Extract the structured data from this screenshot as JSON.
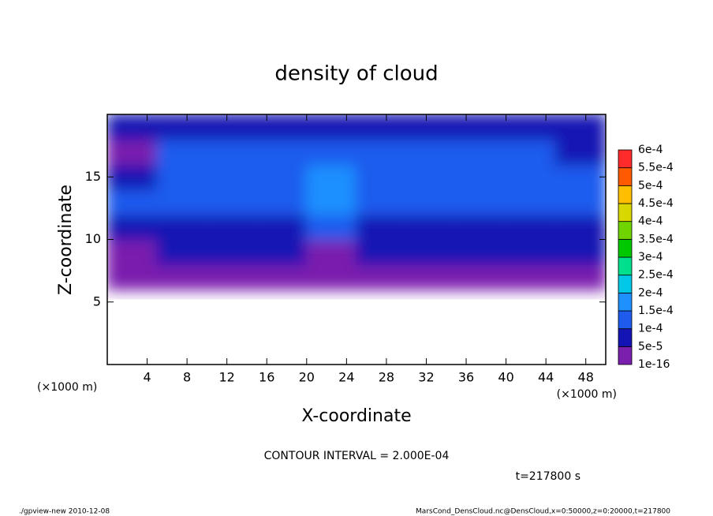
{
  "chart_data": {
    "type": "heatmap",
    "title": "density of cloud",
    "x_label": "X-coordinate",
    "y_label": "Z-coordinate",
    "x_unit": "(×1000 m)",
    "y_unit": "(×1000 m)",
    "contour_note": "CONTOUR INTERVAL = 2.000E-04",
    "time_label": "t=217800 s",
    "footer_left": "./gpview-new  2010-12-08",
    "footer_right": "MarsCond_DensCloud.nc@DensCloud,x=0:50000,z=0:20000,t=217800",
    "xlim": [
      0,
      50
    ],
    "ylim": [
      0,
      20
    ],
    "xticks": [
      4,
      8,
      12,
      16,
      20,
      24,
      28,
      32,
      36,
      40,
      44,
      48
    ],
    "yticks": [
      5,
      10,
      15
    ],
    "x": [
      2.5,
      7.5,
      12.5,
      17.5,
      22.5,
      27.5,
      32.5,
      37.5,
      42.5,
      47.5
    ],
    "z": [
      1,
      3,
      5,
      7,
      9,
      11,
      13,
      15,
      17,
      19
    ],
    "values": [
      [
        null,
        null,
        null,
        null,
        null,
        null,
        null,
        null,
        null,
        null
      ],
      [
        null,
        null,
        null,
        null,
        null,
        null,
        null,
        null,
        null,
        null
      ],
      [
        null,
        null,
        null,
        null,
        null,
        null,
        null,
        null,
        null,
        null
      ],
      [
        2e-05,
        2e-05,
        2e-05,
        2e-05,
        2e-05,
        2e-05,
        2e-05,
        2e-05,
        2e-05,
        2e-05
      ],
      [
        4e-05,
        6e-05,
        6e-05,
        5e-05,
        3e-05,
        6e-05,
        6e-05,
        6e-05,
        6e-05,
        5e-05
      ],
      [
        9e-05,
        8e-05,
        9e-05,
        8e-05,
        0.00011,
        9e-05,
        8e-05,
        8e-05,
        9e-05,
        9e-05
      ],
      [
        0.00012,
        0.00011,
        0.00012,
        0.00012,
        0.00016,
        0.00012,
        0.00012,
        0.00011,
        0.00012,
        0.00011
      ],
      [
        8e-05,
        0.00012,
        0.00013,
        0.00012,
        0.00016,
        0.00014,
        0.00013,
        0.00013,
        0.00012,
        0.0001
      ],
      [
        3e-05,
        0.00011,
        0.00012,
        0.00013,
        0.00014,
        0.00013,
        0.00013,
        0.00012,
        0.00012,
        6e-05
      ],
      [
        6e-05,
        8e-05,
        9e-05,
        9e-05,
        9e-05,
        9e-05,
        9e-05,
        8e-05,
        8e-05,
        5e-05
      ]
    ],
    "levels": [
      {
        "value": 1e-16,
        "label": "1e-16"
      },
      {
        "value": 5e-05,
        "label": "5e-5"
      },
      {
        "value": 0.0001,
        "label": "1e-4"
      },
      {
        "value": 0.00015,
        "label": "1.5e-4"
      },
      {
        "value": 0.0002,
        "label": "2e-4"
      },
      {
        "value": 0.00025,
        "label": "2.5e-4"
      },
      {
        "value": 0.0003,
        "label": "3e-4"
      },
      {
        "value": 0.00035,
        "label": "3.5e-4"
      },
      {
        "value": 0.0004,
        "label": "4e-4"
      },
      {
        "value": 0.00045,
        "label": "4.5e-4"
      },
      {
        "value": 0.0005,
        "label": "5e-4"
      },
      {
        "value": 0.00055,
        "label": "5.5e-4"
      },
      {
        "value": 0.0006,
        "label": "6e-4"
      }
    ],
    "colors": [
      "#7a1fae",
      "#1414b4",
      "#1f5cee",
      "#1e90ff",
      "#00c8e6",
      "#00e08c",
      "#00c800",
      "#70d400",
      "#d8d800",
      "#ffbe00",
      "#ff5a00",
      "#ff2a2a",
      "#ff9a9a"
    ]
  }
}
